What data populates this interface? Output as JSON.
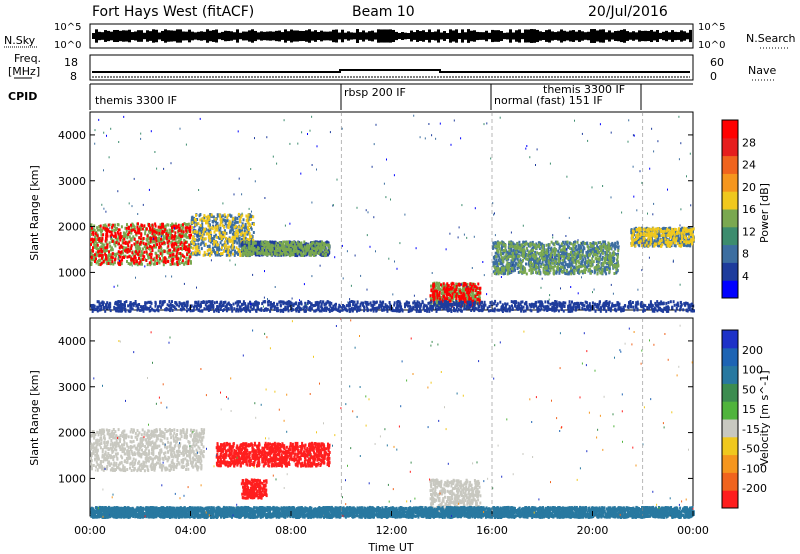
{
  "header": {
    "station": "Fort Hays West (fitACF)",
    "beam": "Beam 10",
    "date": "20/Jul/2016"
  },
  "noise_panel": {
    "left_label": "N.Sky",
    "right_label": "N.Search",
    "left_ticks": [
      "10^5",
      "10^0"
    ],
    "right_ticks": [
      "10^5",
      "10^0"
    ]
  },
  "freq_panel": {
    "left_label_line1": "Freq.",
    "left_label_line2": "[MHz]",
    "right_label": "Nave",
    "left_ticks": [
      "18",
      "8"
    ],
    "right_ticks": [
      "60",
      "0"
    ]
  },
  "cpid_panel": {
    "label": "CPID",
    "segments": [
      "themis 3300 IF",
      "rbsp 200 IF",
      "normal (fast) 151 IF",
      "themis 3300 IF"
    ]
  },
  "axes": {
    "ylabel": "Slant Range [km]",
    "xlabel": "Time UT",
    "yticks": [
      "1000",
      "2000",
      "3000",
      "4000"
    ],
    "xticks": [
      "00:00",
      "04:00",
      "08:00",
      "12:00",
      "16:00",
      "20:00",
      "00:00"
    ]
  },
  "colorbars": {
    "power": {
      "label": "Power [dB]",
      "ticks": [
        "4",
        "8",
        "12",
        "16",
        "20",
        "24",
        "28"
      ],
      "colors": [
        "#0000ff",
        "#1e3c9c",
        "#3c6ea0",
        "#3c8c6e",
        "#7aa850",
        "#f0c81e",
        "#f5961e",
        "#f0641e",
        "#e61e1e",
        "#ff0000"
      ]
    },
    "velocity": {
      "label": "Velocity [m s^-1]",
      "ticks": [
        "200",
        "100",
        "50",
        "15",
        "-15",
        "-50",
        "-100",
        "-200"
      ],
      "colors": [
        "#1e32c8",
        "#1e64b4",
        "#2878a0",
        "#3c8c50",
        "#50b43c",
        "#c8c8c0",
        "#f0c81e",
        "#f5961e",
        "#f0641e",
        "#ff1e1e"
      ]
    }
  },
  "chart_data": [
    {
      "type": "heatmap",
      "title": "Power",
      "x_label": "Time UT",
      "y_label": "Slant Range [km]",
      "x_range_hours": [
        0,
        24
      ],
      "y_range_km": [
        180,
        4500
      ],
      "colorbar_label": "Power [dB]",
      "colorbar_range": [
        0,
        30
      ],
      "features": [
        {
          "t_start": 0.0,
          "t_end": 4.0,
          "range_km": [
            1200,
            2100
          ],
          "peak_db": 28
        },
        {
          "t_start": 4.0,
          "t_end": 6.5,
          "range_km": [
            1400,
            2300
          ],
          "peak_db": 16
        },
        {
          "t_start": 6.0,
          "t_end": 9.5,
          "range_km": [
            1400,
            1700
          ],
          "peak_db": 12
        },
        {
          "t_start": 13.5,
          "t_end": 15.5,
          "range_km": [
            300,
            800
          ],
          "peak_db": 30
        },
        {
          "t_start": 16.0,
          "t_end": 21.0,
          "range_km": [
            1000,
            1700
          ],
          "peak_db": 14
        },
        {
          "t_start": 21.5,
          "t_end": 24.0,
          "range_km": [
            1600,
            2000
          ],
          "peak_db": 16
        }
      ]
    },
    {
      "type": "heatmap",
      "title": "Velocity",
      "x_label": "Time UT",
      "y_label": "Slant Range [km]",
      "x_range_hours": [
        0,
        24
      ],
      "y_range_km": [
        180,
        4500
      ],
      "colorbar_label": "Velocity [m s^-1]",
      "colorbar_range": [
        -200,
        200
      ],
      "features": [
        {
          "t_start": 0.0,
          "t_end": 4.5,
          "range_km": [
            1200,
            2100
          ],
          "velocity": 0
        },
        {
          "t_start": 5.0,
          "t_end": 9.5,
          "range_km": [
            1300,
            1800
          ],
          "velocity": -200
        },
        {
          "t_start": 6.0,
          "t_end": 7.0,
          "range_km": [
            600,
            1000
          ],
          "velocity": -200
        },
        {
          "t_start": 13.5,
          "t_end": 15.5,
          "range_km": [
            300,
            1000
          ],
          "velocity": 0
        },
        {
          "t_start": 0.0,
          "t_end": 24.0,
          "range_km": [
            180,
            400
          ],
          "velocity": 50
        }
      ]
    }
  ]
}
